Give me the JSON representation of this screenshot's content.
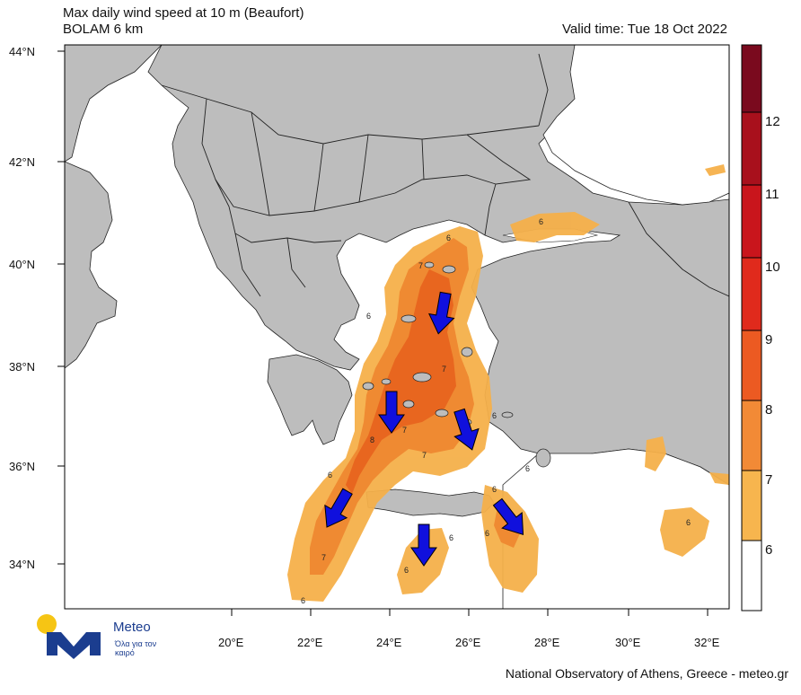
{
  "header": {
    "title": "Max daily wind speed at 10 m (Beaufort)",
    "model": "BOLAM 6 km",
    "valid_time": "Valid time: Tue 18 Oct 2022"
  },
  "map": {
    "lat_labels": [
      "44°N",
      "42°N",
      "40°N",
      "38°N",
      "36°N",
      "34°N"
    ],
    "lon_labels": [
      "20°E",
      "22°E",
      "24°E",
      "26°E",
      "28°E",
      "30°E",
      "32°E"
    ],
    "contour_labels": [
      "6",
      "6",
      "7",
      "6",
      "7",
      "7",
      "6",
      "8",
      "7",
      "6",
      "6",
      "6",
      "7",
      "6",
      "6",
      "6",
      "6",
      "6"
    ],
    "colors": {
      "land": "#bdbdbd",
      "sea": "#ffffff",
      "b6": "#f5b04a",
      "b7": "#ef8a32",
      "b8": "#e8661f",
      "arrow": "#1010dd",
      "border": "#222222"
    },
    "arrows_direction": [
      "S",
      "S",
      "S",
      "SSE",
      "SSW",
      "S",
      "SE"
    ]
  },
  "colorbar": {
    "labels": [
      "12",
      "11",
      "10",
      "9",
      "8",
      "7",
      "6"
    ],
    "colors": [
      "#7a0a1e",
      "#a8101c",
      "#c9151c",
      "#e02a1c",
      "#ec5a22",
      "#f28a36",
      "#f7b54e",
      "#ffffff"
    ]
  },
  "logo": {
    "name": "Meteo",
    "tagline": "Όλα για τον καιρό",
    "colors": {
      "sun": "#f6c514",
      "mark": "#1b3d8f"
    }
  },
  "footer": {
    "credit": "National Observatory of Athens, Greece - meteo.gr"
  }
}
